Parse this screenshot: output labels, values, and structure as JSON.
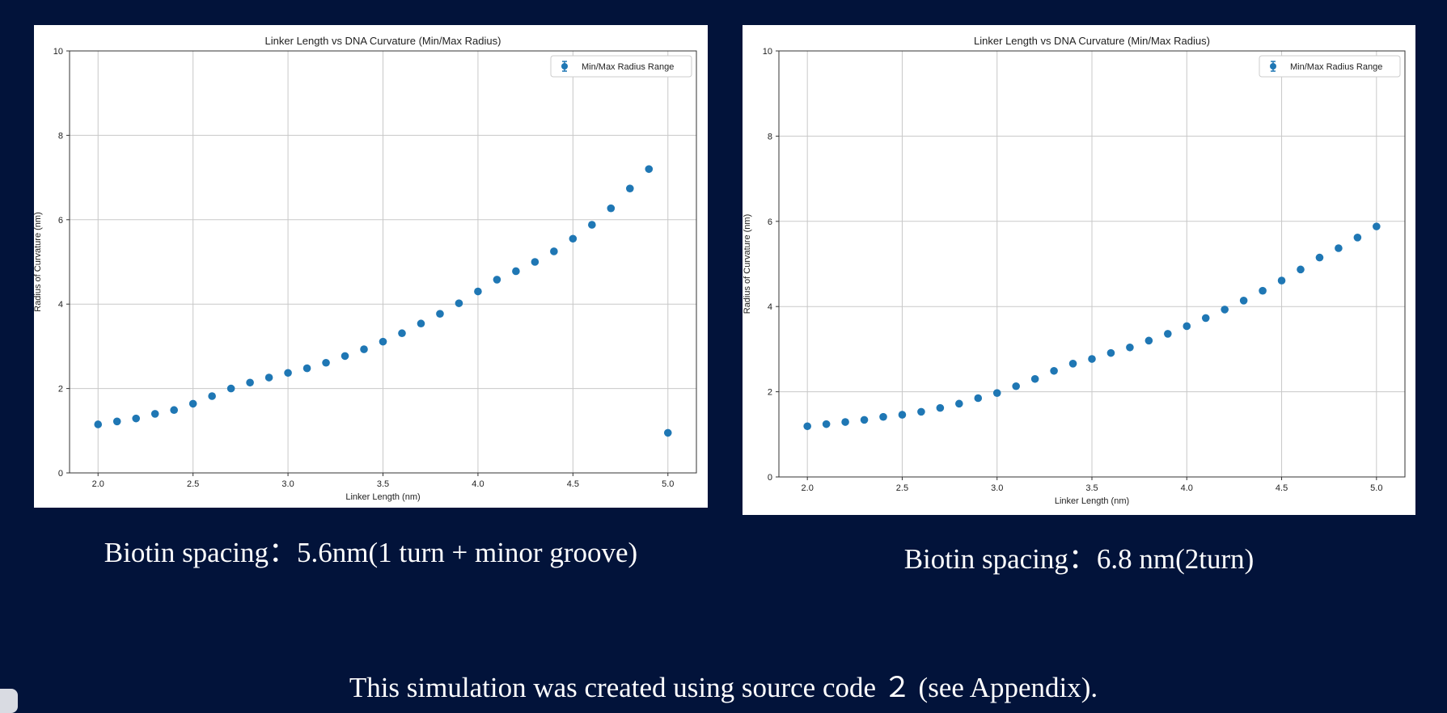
{
  "chart_data": [
    {
      "type": "scatter",
      "title": "Linker Length vs DNA Curvature (Min/Max Radius)",
      "xlabel": "Linker Length (nm)",
      "ylabel": "Radius of Curvature (nm)",
      "xlim": [
        1.85,
        5.15
      ],
      "ylim": [
        0,
        10
      ],
      "xticks": [
        "2.0",
        "2.5",
        "3.0",
        "3.5",
        "4.0",
        "4.5",
        "5.0"
      ],
      "yticks": [
        "0",
        "2",
        "4",
        "6",
        "8",
        "10"
      ],
      "grid": true,
      "legend_position": "top-right",
      "marker_color": "#1f77b4",
      "series": [
        {
          "name": "Min/Max Radius Range",
          "x": [
            2.0,
            2.1,
            2.2,
            2.3,
            2.4,
            2.5,
            2.6,
            2.7,
            2.8,
            2.9,
            3.0,
            3.1,
            3.2,
            3.3,
            3.4,
            3.5,
            3.6,
            3.7,
            3.8,
            3.9,
            4.0,
            4.1,
            4.2,
            4.3,
            4.4,
            4.5,
            4.6,
            4.7,
            4.8,
            4.9,
            5.0
          ],
          "y": [
            1.15,
            1.22,
            1.29,
            1.4,
            1.49,
            1.64,
            1.82,
            2.0,
            2.14,
            2.26,
            2.37,
            2.48,
            2.61,
            2.77,
            2.93,
            3.11,
            3.31,
            3.54,
            3.77,
            4.02,
            4.3,
            4.58,
            4.78,
            5.0,
            5.25,
            5.55,
            5.88,
            6.27,
            6.74,
            7.2,
            0.95
          ]
        }
      ]
    },
    {
      "type": "scatter",
      "title": "Linker Length vs DNA Curvature (Min/Max Radius)",
      "xlabel": "Linker Length (nm)",
      "ylabel": "Radius of Curvature (nm)",
      "xlim": [
        1.85,
        5.15
      ],
      "ylim": [
        0,
        10
      ],
      "xticks": [
        "2.0",
        "2.5",
        "3.0",
        "3.5",
        "4.0",
        "4.5",
        "5.0"
      ],
      "yticks": [
        "0",
        "2",
        "4",
        "6",
        "8",
        "10"
      ],
      "grid": true,
      "legend_position": "top-right",
      "marker_color": "#1f77b4",
      "series": [
        {
          "name": "Min/Max Radius Range",
          "x": [
            2.0,
            2.1,
            2.2,
            2.3,
            2.4,
            2.5,
            2.6,
            2.7,
            2.8,
            2.9,
            3.0,
            3.1,
            3.2,
            3.3,
            3.4,
            3.5,
            3.6,
            3.7,
            3.8,
            3.9,
            4.0,
            4.1,
            4.2,
            4.3,
            4.4,
            4.5,
            4.6,
            4.7,
            4.8,
            4.9,
            5.0
          ],
          "y": [
            1.19,
            1.24,
            1.29,
            1.34,
            1.41,
            1.46,
            1.53,
            1.62,
            1.72,
            1.85,
            1.97,
            2.13,
            2.3,
            2.49,
            2.66,
            2.77,
            2.91,
            3.04,
            3.2,
            3.36,
            3.54,
            3.73,
            3.93,
            4.14,
            4.37,
            4.61,
            4.87,
            5.15,
            5.37,
            5.62,
            5.88
          ]
        }
      ]
    }
  ],
  "captions": {
    "left": "Biotin spacing：5.6nm(1 turn + minor groove)",
    "right": "Biotin spacing：6.8 nm(2turn)"
  },
  "footer": "This simulation was created using source code ２ (see Appendix).",
  "colors": {
    "background": "#02133a",
    "text": "#ffffff",
    "panel": "#ffffff",
    "marker": "#1f77b4"
  }
}
